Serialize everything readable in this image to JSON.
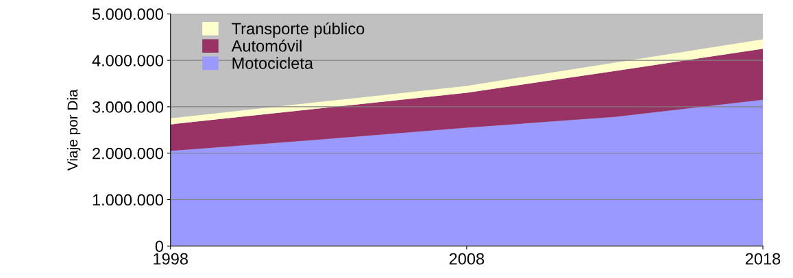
{
  "chart_data": {
    "type": "area",
    "stacked": true,
    "ylabel": "Viaje por Dia",
    "x": [
      1998,
      2003,
      2008,
      2013,
      2018
    ],
    "series": [
      {
        "name": "Motocicleta",
        "color": "#9999ff",
        "values": [
          2050000,
          2290000,
          2550000,
          2780000,
          3150000
        ]
      },
      {
        "name": "Automóvil",
        "color": "#993366",
        "values": [
          570000,
          670000,
          750000,
          990000,
          1100000
        ]
      },
      {
        "name": "Transporte público",
        "color": "#ffffcc",
        "values": [
          130000,
          140000,
          150000,
          180000,
          200000
        ]
      }
    ],
    "xlim": [
      1998,
      2018
    ],
    "xticks": [
      1998,
      2008,
      2018
    ],
    "ylim": [
      0,
      5000000
    ],
    "yticks": [
      {
        "value": 0,
        "label": "0"
      },
      {
        "value": 1000000,
        "label": "1.000.000"
      },
      {
        "value": 2000000,
        "label": "2.000.000"
      },
      {
        "value": 3000000,
        "label": "3.000.000"
      },
      {
        "value": 4000000,
        "label": "4.000.000"
      },
      {
        "value": 5000000,
        "label": "5.000.000"
      }
    ],
    "grid": "y",
    "legend": "top left"
  }
}
